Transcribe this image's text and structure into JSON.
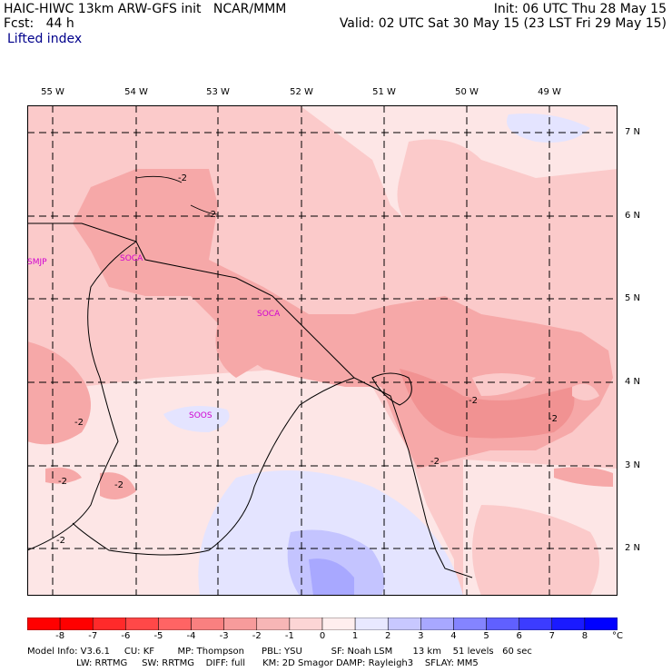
{
  "header": {
    "model_line": "HAIC-HIWC 13km ARW-GFS init   NCAR/MMM",
    "fcst_line": "Fcst:   44 h",
    "field": "Lifted index",
    "init": "Init: 06 UTC Thu 28 May 15",
    "valid": "Valid: 02 UTC Sat 30 May 15 (23 LST Fri 29 May 15)"
  },
  "axes": {
    "lon_labels": [
      "55 W",
      "54 W",
      "53 W",
      "52 W",
      "51 W",
      "50 W",
      "49 W"
    ],
    "lat_labels": [
      "7 N",
      "6 N",
      "5 N",
      "4 N",
      "3 N",
      "2 N"
    ]
  },
  "stations": [
    "SMJP",
    "SOCA",
    "SOCA",
    "SOOS"
  ],
  "contour_labels": [
    "-2",
    "-2",
    "-2",
    "-2",
    "-2",
    "-2",
    "-2",
    "-2",
    "-2"
  ],
  "colorbar": {
    "ticks": [
      "-8",
      "-7",
      "-6",
      "-5",
      "-4",
      "-3",
      "-2",
      "-1",
      "0",
      "1",
      "2",
      "3",
      "4",
      "5",
      "6",
      "7",
      "8"
    ],
    "unit": "°C",
    "colors": [
      "#ff0000",
      "#ff2a2a",
      "#ff4848",
      "#ff6464",
      "#f98080",
      "#f79b9b",
      "#f7b6b6",
      "#fcd5d5",
      "#ffeeee",
      "#e8e8ff",
      "#c8c8ff",
      "#a8a8ff",
      "#8484ff",
      "#6060ff",
      "#3c3cff",
      "#1a1aff",
      "#0000ff"
    ]
  },
  "footer": {
    "line1": "Model Info: V3.6.1     CU: KF        MP: Thompson      PBL: YSU          SF: Noah LSM       13 km    51 levels   60 sec",
    "line2": "                 LW: RRTMG     SW: RRTMG    DIFF: full      KM: 2D Smagor DAMP: Rayleigh3    SFLAY: MM5"
  },
  "colors": {
    "background_pale": "#fde6e6",
    "light_pink": "#fbcaca",
    "pink": "#f6a8a8",
    "light_blue": "#e0e0ff",
    "blue": "#b4b4ff",
    "station_text": "#d000d0"
  }
}
